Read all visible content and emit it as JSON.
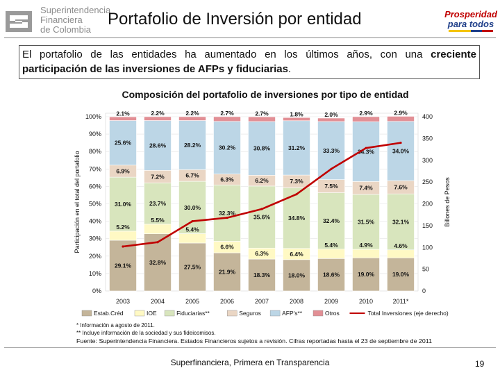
{
  "header": {
    "logo_lines": [
      "Superintendencia",
      "Financiera",
      "de Colombia"
    ],
    "title": "Portafolio de Inversión por entidad",
    "right_logo_lines": [
      "Prosperidad",
      "para todos"
    ]
  },
  "intro": {
    "normal": "El portafolio de las entidades ha aumentado en los últimos años, con una ",
    "bold": "creciente participación de las inversiones de AFPs y fiduciarias",
    "end": "."
  },
  "chart_data": {
    "type": "bar",
    "stacked": true,
    "title": "Composición del portafolio de inversiones por tipo de entidad",
    "categories": [
      "2003",
      "2004",
      "2005",
      "2006",
      "2007",
      "2008",
      "2009",
      "2010",
      "2011*"
    ],
    "ylabel": "Participación en el total del portafolio",
    "y2label": "Billones de Pesos",
    "ylim": [
      0,
      100
    ],
    "y2lim": [
      0,
      400
    ],
    "yticks": [
      "0%",
      "10%",
      "20%",
      "30%",
      "40%",
      "50%",
      "60%",
      "70%",
      "80%",
      "90%",
      "100%"
    ],
    "y2ticks": [
      "0",
      "50",
      "100",
      "150",
      "200",
      "250",
      "300",
      "350",
      "400"
    ],
    "series": [
      {
        "name": "Estab.Créd",
        "color": "#c4b59a",
        "values": [
          29.1,
          32.8,
          27.5,
          21.9,
          18.3,
          18.0,
          18.6,
          19.0,
          19.0
        ],
        "labels": [
          "29.1%",
          "32.8%",
          "27.5%",
          "21.9%",
          "18.3%",
          "18.0%",
          "18.6%",
          "19.0%",
          "19.0%"
        ]
      },
      {
        "name": "IOE",
        "color": "#fff9c4",
        "values": [
          5.2,
          5.5,
          5.4,
          6.6,
          6.3,
          6.4,
          5.4,
          4.9,
          4.6
        ],
        "labels": [
          "5.2%",
          "5.5%",
          "5.4%",
          "6.6%",
          "6.3%",
          "6.4%",
          "5.4%",
          "4.9%",
          "4.6%"
        ]
      },
      {
        "name": "Fiduciarias**",
        "color": "#d8e5bd",
        "values": [
          31.0,
          23.7,
          30.0,
          32.3,
          35.6,
          34.8,
          32.4,
          31.5,
          32.1
        ],
        "labels": [
          "31.0%",
          "23.7%",
          "30.0%",
          "32.3%",
          "35.6%",
          "34.8%",
          "32.4%",
          "31.5%",
          "32.1%"
        ]
      },
      {
        "name": "Seguros",
        "color": "#ead6c4",
        "values": [
          6.9,
          7.2,
          6.7,
          6.3,
          6.2,
          7.3,
          7.5,
          7.4,
          7.6
        ],
        "labels": [
          "6.9%",
          "7.2%",
          "6.7%",
          "6.3%",
          "6.2%",
          "7.3%",
          "7.5%",
          "7.4%",
          "7.6%"
        ]
      },
      {
        "name": "AFP's**",
        "color": "#bcd6e6",
        "values": [
          25.6,
          28.6,
          28.2,
          30.2,
          30.8,
          31.2,
          33.3,
          34.3,
          34.0
        ],
        "labels": [
          "25.6%",
          "28.6%",
          "28.2%",
          "30.2%",
          "30.8%",
          "31.2%",
          "33.3%",
          "34.3%",
          "34.0%"
        ]
      },
      {
        "name": "Otros",
        "color": "#e28f95",
        "values": [
          2.1,
          2.2,
          2.2,
          2.7,
          2.7,
          1.8,
          2.0,
          2.9,
          2.9
        ],
        "labels": [
          "2.1%",
          "2.2%",
          "2.2%",
          "2.7%",
          "2.7%",
          "1.8%",
          "2.0%",
          "2.9%",
          "2.9%"
        ]
      }
    ],
    "line": {
      "name": "Total Inversiones (eje derecho)",
      "color": "#c00000",
      "axis": "right",
      "values": [
        102,
        112,
        160,
        168,
        188,
        222,
        280,
        328,
        340
      ]
    },
    "legend_position": "bottom"
  },
  "notes": [
    "* Información a agosto de 2011.",
    "** Incluye información de la sociedad y sus fideicomisos.",
    "Fuente: Superintendencia Financiera. Estados Financieros sujetos a revisión. Cifras reportadas hasta el 23 de septiembre de 2011"
  ],
  "footer": {
    "text": "Superfinanciera, Primera en Transparencia",
    "page": "19"
  }
}
